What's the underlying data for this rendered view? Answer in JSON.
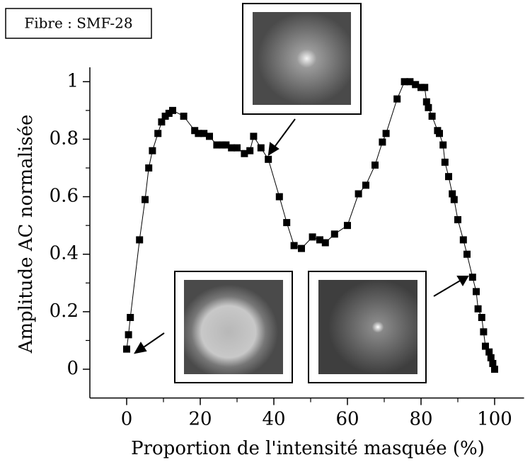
{
  "chart_data": {
    "type": "scatter",
    "annotation": "Fibre : SMF-28",
    "x_label": "Proportion de l'intensité masquée (%)",
    "y_label": "Amplitude AC normalisée",
    "xlim": [
      -10,
      108
    ],
    "ylim": [
      -0.1,
      1.05
    ],
    "xticks": [
      0,
      20,
      40,
      60,
      80,
      100
    ],
    "yticks": [
      0,
      0.2,
      0.4,
      0.6,
      0.8,
      1
    ],
    "color": "#000000",
    "x": [
      0,
      0.5,
      1,
      3.5,
      5,
      6,
      7,
      8.5,
      9.5,
      10.5,
      11.5,
      12.5,
      15.5,
      18.5,
      19.5,
      21,
      22.5,
      24.5,
      26,
      27,
      28.5,
      30,
      32,
      33.5,
      34.5,
      36.5,
      38.5,
      41.5,
      43.5,
      45.5,
      47.5,
      50.5,
      52.5,
      54,
      56.5,
      60,
      63,
      65,
      67.5,
      69.5,
      70.5,
      73.5,
      75.5,
      77,
      78.5,
      80,
      81,
      81.5,
      82,
      83,
      84.5,
      85,
      86,
      86.5,
      87.5,
      88.5,
      89,
      90,
      91.5,
      92.5,
      94,
      95,
      95.5,
      96.5,
      97,
      97.5,
      98.5,
      99,
      99.5,
      100
    ],
    "values": [
      0.07,
      0.12,
      0.18,
      0.45,
      0.59,
      0.7,
      0.76,
      0.82,
      0.86,
      0.88,
      0.89,
      0.9,
      0.88,
      0.83,
      0.82,
      0.82,
      0.81,
      0.78,
      0.78,
      0.78,
      0.77,
      0.77,
      0.75,
      0.76,
      0.81,
      0.77,
      0.73,
      0.6,
      0.51,
      0.43,
      0.42,
      0.46,
      0.45,
      0.44,
      0.47,
      0.5,
      0.61,
      0.64,
      0.71,
      0.79,
      0.82,
      0.94,
      1.0,
      1.0,
      0.99,
      0.98,
      0.98,
      0.93,
      0.91,
      0.88,
      0.83,
      0.82,
      0.78,
      0.72,
      0.67,
      0.61,
      0.59,
      0.52,
      0.45,
      0.4,
      0.32,
      0.27,
      0.21,
      0.18,
      0.13,
      0.08,
      0.06,
      0.04,
      0.02,
      0.0
    ]
  }
}
